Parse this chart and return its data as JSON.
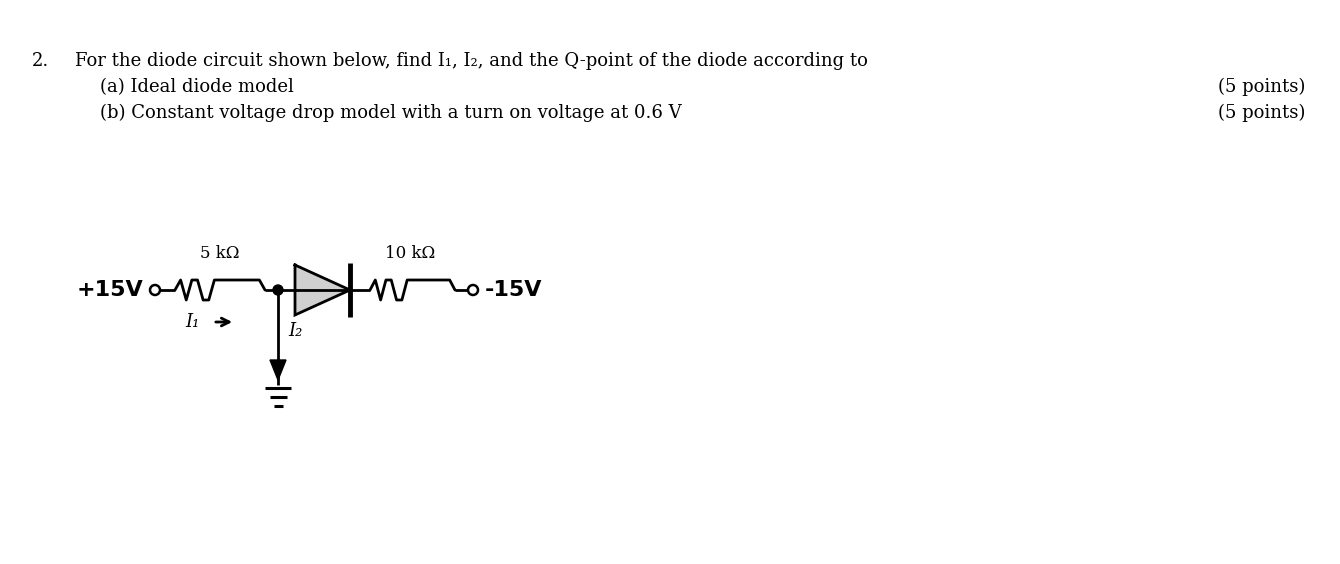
{
  "background_color": "#ffffff",
  "text_question_num": "2.",
  "text_line1": "For the diode circuit shown below, find I₁, I₂, and the Q-point of the diode according to",
  "text_line2a": "(a) Ideal diode model",
  "text_line2b": "(b) Constant voltage drop model with a turn on voltage at 0.6 V",
  "text_points1": "(5 points)",
  "text_points2": "(5 points)",
  "text_color": "#000000",
  "circuit": {
    "plus15v_label": "+15V",
    "minus15v_label": "-15V",
    "r1_label": "5 kΩ",
    "r2_label": "10 kΩ",
    "i1_label": "I₁",
    "i2_label": "I₂"
  }
}
